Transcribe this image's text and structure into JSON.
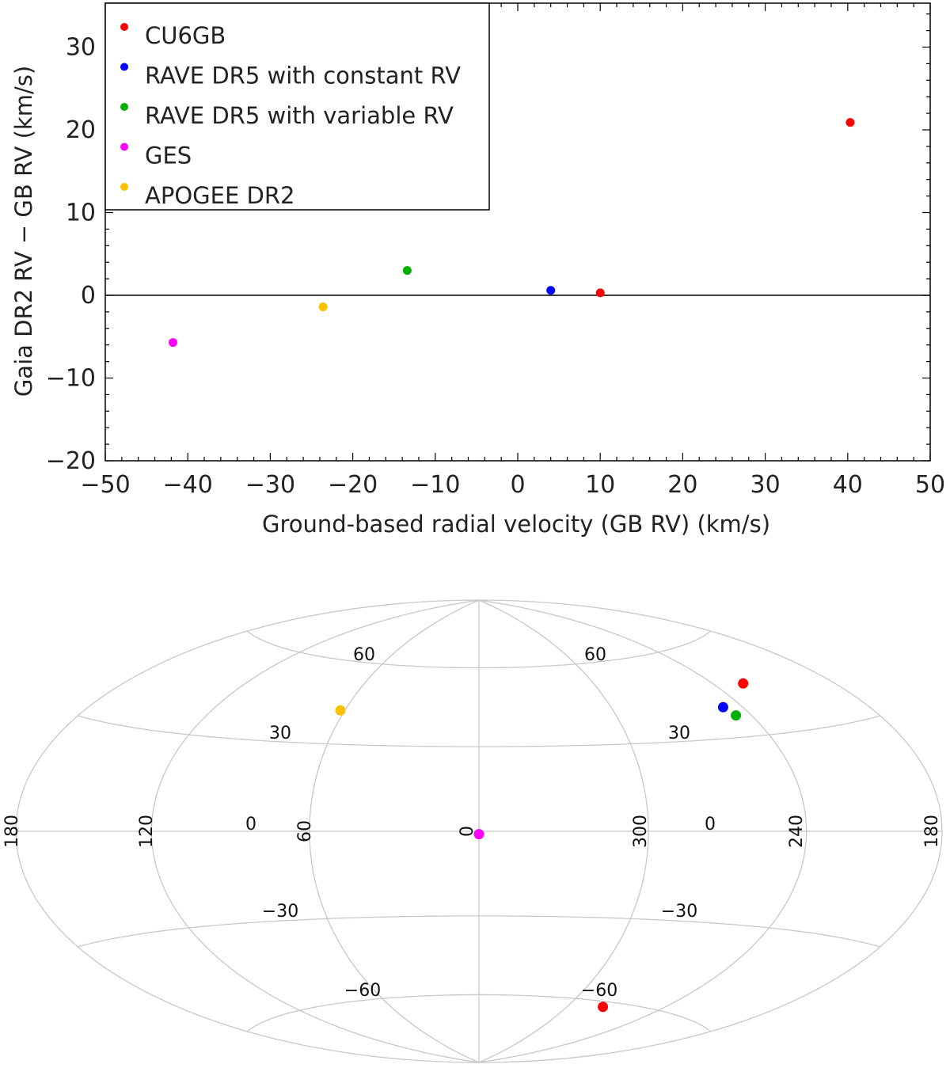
{
  "chart_data": [
    {
      "type": "scatter",
      "xlabel": "Ground-based radial velocity (GB RV) (km/s)",
      "ylabel": "Gaia DR2 RV − GB RV (km/s)",
      "xlim": [
        -50,
        50
      ],
      "ylim": [
        -20,
        35
      ],
      "x_ticks": [
        -50,
        -40,
        -30,
        -20,
        -10,
        0,
        10,
        20,
        30,
        40,
        50
      ],
      "x_tick_labels": [
        "−50",
        "−40",
        "−30",
        "−20",
        "−10",
        "0",
        "10",
        "20",
        "30",
        "40",
        "50"
      ],
      "y_ticks": [
        -20,
        -10,
        0,
        10,
        20,
        30
      ],
      "y_tick_labels": [
        "−20",
        "−10",
        "0",
        "10",
        "20",
        "30"
      ],
      "zero_line": 0,
      "legend": "top-left",
      "series": [
        {
          "name": "CU6GB",
          "color": "#ff0000",
          "points": [
            {
              "x": 40.3,
              "y": 20.9
            },
            {
              "x": 10.0,
              "y": 0.3
            }
          ]
        },
        {
          "name": "RAVE DR5 with constant RV",
          "color": "#0000ff",
          "points": [
            {
              "x": 4.0,
              "y": 0.6
            }
          ]
        },
        {
          "name": "RAVE DR5 with variable RV",
          "color": "#00b000",
          "points": [
            {
              "x": -13.4,
              "y": 3.0
            }
          ]
        },
        {
          "name": "GES",
          "color": "#ff00ff",
          "points": [
            {
              "x": -41.8,
              "y": -5.7
            }
          ]
        },
        {
          "name": "APOGEE DR2",
          "color": "#ffc000",
          "points": [
            {
              "x": -23.6,
              "y": -1.4
            }
          ]
        }
      ]
    },
    {
      "type": "scatter",
      "projection": "hammer-aitoff",
      "coordinates": "galactic",
      "meridian_labels": [
        "180",
        "120",
        "60",
        "0",
        "300",
        "240",
        "180"
      ],
      "parallel_labels": [
        {
          "text": "60",
          "value": 60
        },
        {
          "text": "30",
          "value": 30
        },
        {
          "text": "0",
          "value": 0
        },
        {
          "text": "−30",
          "value": -30
        },
        {
          "text": "−60",
          "value": -60
        }
      ],
      "points": [
        {
          "name": "CU6GB",
          "color": "#ff0000",
          "l": 225,
          "b": 46
        },
        {
          "name": "CU6GB",
          "color": "#ff0000",
          "l": 277,
          "b": -62
        },
        {
          "name": "RAVE DR5 with constant RV",
          "color": "#0000ff",
          "l": 249,
          "b": 40
        },
        {
          "name": "RAVE DR5 with variable RV",
          "color": "#00b000",
          "l": 247,
          "b": 37
        },
        {
          "name": "GES",
          "color": "#ff00ff",
          "l": 0,
          "b": -1
        },
        {
          "name": "APOGEE DR2",
          "color": "#ffc000",
          "l": 62,
          "b": 42
        }
      ]
    }
  ]
}
